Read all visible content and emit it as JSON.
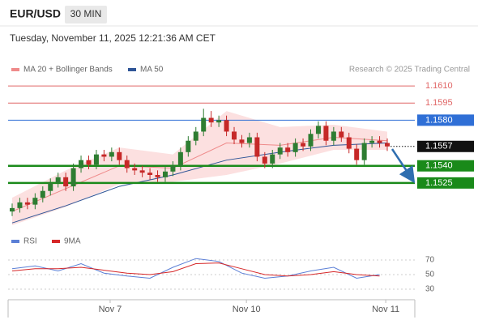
{
  "header": {
    "symbol": "EUR/USD",
    "timeframe": "30 MIN",
    "timestamp": "Tuesday, November 11, 2025 12:21:36 AM CET",
    "credit": "Research © 2025 Trading Central"
  },
  "chart_data": {
    "type": "candlestick",
    "xlim": [
      0,
      49
    ],
    "xticks": [
      {
        "value": 12.8,
        "label": "Nov 7"
      },
      {
        "value": 30.6,
        "label": "Nov 10"
      },
      {
        "value": 48.8,
        "label": "Nov 11"
      }
    ],
    "ylim": [
      1.1488,
      1.162
    ],
    "up_color": "#2e7d32",
    "down_color": "#c62828",
    "candles": {
      "open": [
        1.15,
        1.1503,
        1.1508,
        1.1506,
        1.1512,
        1.1518,
        1.1525,
        1.153,
        1.1522,
        1.1538,
        1.1545,
        1.1541,
        1.155,
        1.1548,
        1.1552,
        1.1545,
        1.1538,
        1.1536,
        1.1534,
        1.1532,
        1.153,
        1.1535,
        1.154,
        1.1552,
        1.1562,
        1.157,
        1.1582,
        1.1578,
        1.158,
        1.157,
        1.1563,
        1.156,
        1.1565,
        1.1548,
        1.1542,
        1.155,
        1.1556,
        1.1552,
        1.156,
        1.1557,
        1.1568,
        1.1575,
        1.1562,
        1.157,
        1.1565,
        1.1555,
        1.1545,
        1.156,
        1.1562,
        1.156
      ],
      "high": [
        1.1507,
        1.1512,
        1.1512,
        1.1516,
        1.1522,
        1.1529,
        1.1534,
        1.1534,
        1.1542,
        1.1549,
        1.1549,
        1.1554,
        1.1554,
        1.1556,
        1.1556,
        1.1549,
        1.1542,
        1.154,
        1.1538,
        1.1536,
        1.1539,
        1.1544,
        1.1556,
        1.1566,
        1.1574,
        1.159,
        1.1588,
        1.1584,
        1.1584,
        1.1574,
        1.1567,
        1.1569,
        1.1569,
        1.1552,
        1.1554,
        1.156,
        1.156,
        1.1564,
        1.1564,
        1.1572,
        1.1579,
        1.1579,
        1.1574,
        1.1574,
        1.1569,
        1.1559,
        1.1564,
        1.1566,
        1.1566,
        1.1564
      ],
      "low": [
        1.1496,
        1.1499,
        1.1502,
        1.1502,
        1.1508,
        1.1514,
        1.1521,
        1.1518,
        1.1518,
        1.1534,
        1.1537,
        1.1537,
        1.1544,
        1.1544,
        1.1541,
        1.1534,
        1.1532,
        1.153,
        1.1528,
        1.1526,
        1.1526,
        1.1531,
        1.1536,
        1.1548,
        1.1558,
        1.1566,
        1.1574,
        1.1574,
        1.1566,
        1.1559,
        1.1556,
        1.1556,
        1.1544,
        1.1538,
        1.1538,
        1.1546,
        1.1548,
        1.1548,
        1.1553,
        1.1553,
        1.1564,
        1.1558,
        1.1558,
        1.1561,
        1.1551,
        1.1541,
        1.1541,
        1.1556,
        1.1556,
        1.1553
      ],
      "close": [
        1.1503,
        1.1508,
        1.1506,
        1.1512,
        1.1518,
        1.1525,
        1.153,
        1.1522,
        1.1538,
        1.1545,
        1.1541,
        1.155,
        1.1548,
        1.1552,
        1.1545,
        1.1538,
        1.1536,
        1.1534,
        1.1532,
        1.153,
        1.1535,
        1.154,
        1.1552,
        1.1562,
        1.157,
        1.1582,
        1.1578,
        1.158,
        1.157,
        1.1563,
        1.156,
        1.1565,
        1.1548,
        1.1542,
        1.155,
        1.1556,
        1.1552,
        1.156,
        1.1557,
        1.1568,
        1.1575,
        1.1562,
        1.157,
        1.1565,
        1.1555,
        1.1545,
        1.156,
        1.1562,
        1.156,
        1.1557
      ]
    },
    "ma20": {
      "name": "MA 20 + Bollinger Bands",
      "color": "#ef8a8a",
      "band_color": "#fbd3d3",
      "x": [
        0,
        7,
        14,
        21,
        28,
        35,
        42,
        49
      ],
      "values": [
        1.15,
        1.152,
        1.154,
        1.1538,
        1.156,
        1.1558,
        1.1565,
        1.1562
      ],
      "upper": [
        1.1512,
        1.1536,
        1.1556,
        1.155,
        1.1588,
        1.1574,
        1.1576,
        1.157
      ],
      "lower": [
        1.1488,
        1.1504,
        1.1524,
        1.1526,
        1.1532,
        1.1542,
        1.1554,
        1.1554
      ]
    },
    "ma50": {
      "name": "MA 50",
      "color": "#2f5597",
      "x": [
        0,
        7,
        14,
        21,
        28,
        35,
        42,
        49
      ],
      "values": [
        1.149,
        1.1505,
        1.1522,
        1.1532,
        1.1545,
        1.1552,
        1.1558,
        1.156
      ]
    },
    "levels": {
      "values": [
        {
          "value": 1.161,
          "label": "1.1610"
        },
        1.1595,
        {
          "value": 1.158,
          "label": "1.1580"
        },
        1.1557,
        {
          "value": 1.154,
          "label": "1.1540"
        },
        1.1525
      ],
      "colors": [
        "#e06666",
        "#e06666",
        "#2f6fd6",
        "#111111",
        "#1a8a1a",
        "#1a8a1a"
      ],
      "boxed": [
        false,
        false,
        true,
        true,
        true,
        true
      ],
      "widths": [
        1,
        1,
        1,
        1,
        2.5,
        2.5
      ],
      "dotted": [
        false,
        false,
        false,
        true,
        false,
        false
      ]
    },
    "rsi_panel": {
      "ylim": [
        20,
        80
      ],
      "yticks": [
        30,
        50,
        70
      ],
      "series": [
        {
          "name": "RSI",
          "color": "#5b7fd6",
          "x": [
            0,
            3,
            6,
            9,
            12,
            15,
            18,
            21,
            24,
            27,
            30,
            33,
            36,
            39,
            42,
            45,
            48
          ],
          "values": [
            58,
            62,
            55,
            65,
            52,
            48,
            45,
            60,
            72,
            68,
            52,
            45,
            48,
            55,
            60,
            45,
            50
          ]
        },
        {
          "name": "9MA",
          "color": "#d62728",
          "x": [
            0,
            3,
            6,
            9,
            12,
            15,
            18,
            21,
            24,
            27,
            30,
            33,
            36,
            39,
            42,
            45,
            48
          ],
          "values": [
            55,
            58,
            58,
            60,
            56,
            52,
            50,
            54,
            65,
            66,
            58,
            50,
            48,
            50,
            54,
            50,
            48
          ]
        }
      ]
    }
  }
}
